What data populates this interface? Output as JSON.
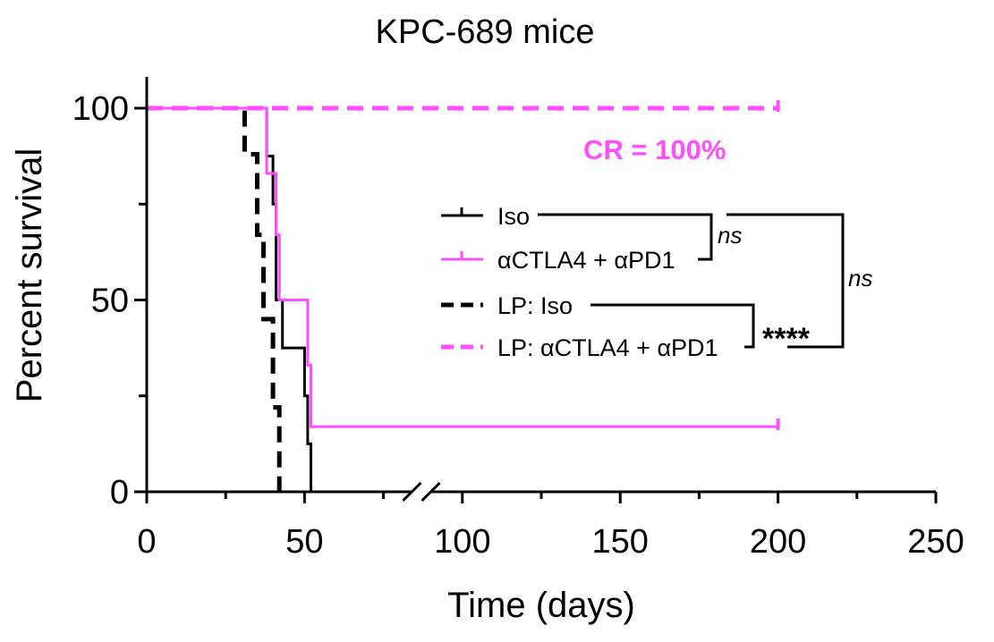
{
  "chart_data": {
    "type": "line",
    "subtype": "kaplan-meier",
    "title": "KPC-689 mice",
    "xlabel": "Time (days)",
    "ylabel": "Percent survival",
    "xlim": [
      0,
      250
    ],
    "ylim": [
      0,
      100
    ],
    "x_ticks": [
      "0",
      "50",
      "100",
      "150",
      "200",
      "250"
    ],
    "y_ticks": [
      "0",
      "50",
      "100"
    ],
    "x_axis_break": [
      84,
      90
    ],
    "grid": false,
    "legend_position": "center-right",
    "series": [
      {
        "name": "Iso",
        "color": "#000000",
        "dashed": false,
        "steps": [
          [
            0,
            100
          ],
          [
            38,
            100
          ],
          [
            38,
            87.5
          ],
          [
            40,
            87.5
          ],
          [
            40,
            75
          ],
          [
            41,
            75
          ],
          [
            41,
            50
          ],
          [
            43,
            50
          ],
          [
            43,
            37.5
          ],
          [
            50,
            37.5
          ],
          [
            50,
            25
          ],
          [
            51,
            25
          ],
          [
            51,
            12.5
          ],
          [
            52,
            12.5
          ],
          [
            52,
            0
          ]
        ]
      },
      {
        "name": "αCTLA4 + αPD1",
        "color": "#ff4dff",
        "dashed": false,
        "steps": [
          [
            0,
            100
          ],
          [
            38,
            100
          ],
          [
            38,
            83
          ],
          [
            41,
            83
          ],
          [
            41,
            67
          ],
          [
            42,
            67
          ],
          [
            42,
            50
          ],
          [
            51,
            50
          ],
          [
            51,
            33
          ],
          [
            52,
            33
          ],
          [
            52,
            17
          ],
          [
            85,
            17
          ],
          [
            90,
            17
          ],
          [
            200,
            17
          ]
        ]
      },
      {
        "name": "LP: Iso",
        "color": "#000000",
        "dashed": true,
        "steps": [
          [
            0,
            100
          ],
          [
            31,
            100
          ],
          [
            31,
            88
          ],
          [
            35,
            88
          ],
          [
            35,
            67
          ],
          [
            37,
            67
          ],
          [
            37,
            45
          ],
          [
            40,
            45
          ],
          [
            40,
            22
          ],
          [
            42,
            22
          ],
          [
            42,
            0
          ]
        ]
      },
      {
        "name": "LP: αCTLA4 + αPD1",
        "color": "#ff4dff",
        "dashed": true,
        "steps": [
          [
            0,
            100
          ],
          [
            85,
            100
          ],
          [
            90,
            100
          ],
          [
            200,
            100
          ]
        ]
      }
    ],
    "annotations": {
      "cr": "CR  = 100%",
      "cr_color": "#ff4dff",
      "ns_1": "ns",
      "ns_2": "ns",
      "stars": "****"
    }
  }
}
